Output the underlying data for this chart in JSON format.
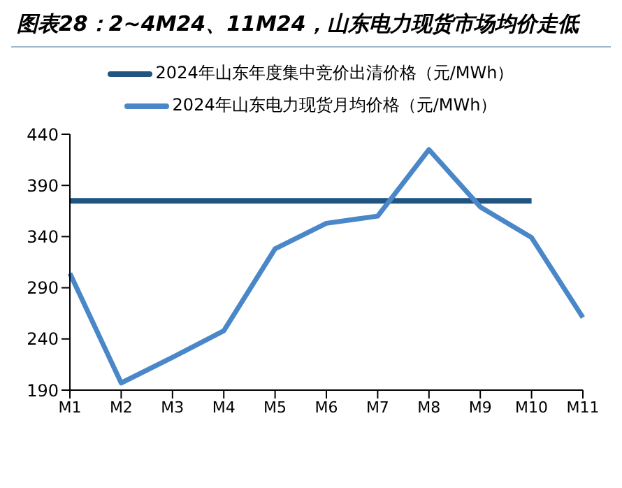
{
  "chart_data": {
    "type": "line",
    "title": "图表28：2~4M24、11M24，山东电力现货市场均价走低",
    "categories": [
      "M1",
      "M2",
      "M3",
      "M4",
      "M5",
      "M6",
      "M7",
      "M8",
      "M9",
      "M10",
      "M11"
    ],
    "series": [
      {
        "name": "2024年山东年度集中竞价出清价格（元/MWh）",
        "color": "#1f5580",
        "values": [
          375,
          375,
          375,
          375,
          375,
          375,
          375,
          375,
          375,
          375,
          null
        ]
      },
      {
        "name": "2024年山东电力现货月均价格（元/MWh）",
        "color": "#4a87c8",
        "values": [
          304,
          197,
          222,
          248,
          328,
          353,
          360,
          425,
          369,
          339,
          261
        ]
      }
    ],
    "ylim": [
      190,
      440
    ],
    "yticks": [
      190,
      240,
      290,
      340,
      390,
      440
    ],
    "grid": false,
    "legend": "top",
    "marker": "none",
    "line_style": "solid"
  }
}
